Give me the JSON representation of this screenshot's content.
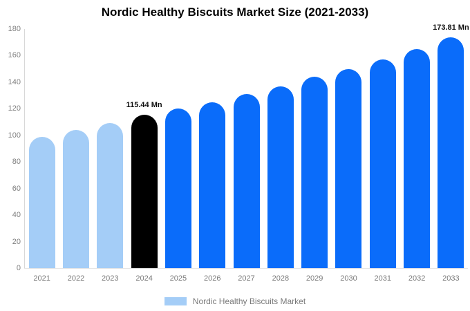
{
  "title": "Nordic Healthy Biscuits Market Size (2021-2033)",
  "legend": {
    "label": "Nordic Healthy Biscuits Market",
    "swatch_color": "#a4cdf7"
  },
  "colors": {
    "historical": "#a4cdf7",
    "highlight": "#000000",
    "forecast": "#0a6cfa",
    "axis_text": "#7f7f7f",
    "axis_line": "#d8d8d8",
    "title_text": "#000000",
    "annotation_text": "#111111"
  },
  "chart_data": {
    "type": "bar",
    "title": "Nordic Healthy Biscuits Market Size (2021-2033)",
    "xlabel": "",
    "ylabel": "",
    "unit": "Mn",
    "categories": [
      "2021",
      "2022",
      "2023",
      "2024",
      "2025",
      "2026",
      "2027",
      "2028",
      "2029",
      "2030",
      "2031",
      "2032",
      "2033"
    ],
    "values": [
      99,
      104,
      109,
      115.44,
      120,
      125,
      131,
      137,
      144,
      150,
      157,
      165,
      173.81
    ],
    "bar_colors": [
      "historical",
      "historical",
      "historical",
      "highlight",
      "forecast",
      "forecast",
      "forecast",
      "forecast",
      "forecast",
      "forecast",
      "forecast",
      "forecast",
      "forecast"
    ],
    "annotations": [
      {
        "index": 3,
        "category": "2024",
        "text": "115.44 Mn"
      },
      {
        "index": 12,
        "category": "2033",
        "text": "173.81 Mn"
      }
    ],
    "ylim": [
      0,
      180
    ],
    "yticks": [
      "0",
      "20",
      "40",
      "60",
      "80",
      "100",
      "120",
      "140",
      "160",
      "180"
    ],
    "grid": false,
    "legend_position": "bottom"
  }
}
